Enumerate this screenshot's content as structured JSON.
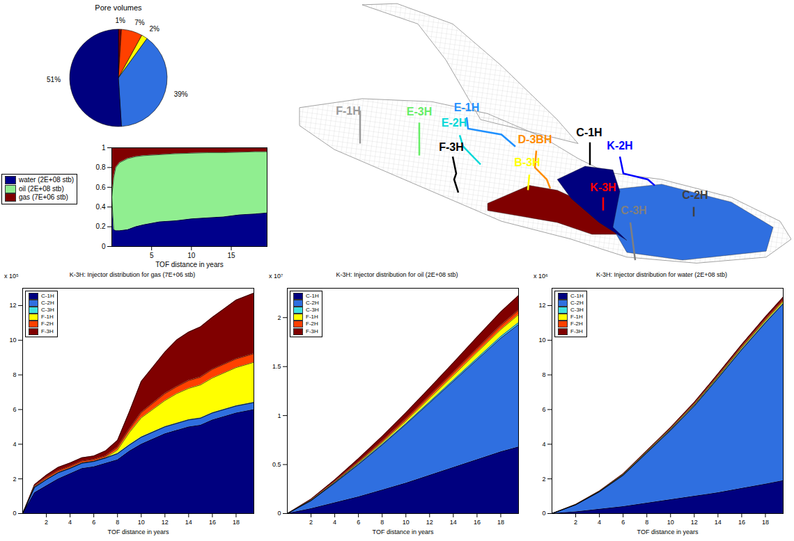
{
  "chart_data": [
    {
      "type": "pie",
      "title": "Pore volumes",
      "values": [
        1,
        7,
        2,
        39,
        51
      ],
      "value_labels": [
        "1%",
        "7%",
        "2%",
        "39%",
        "51%"
      ],
      "colors": [
        "#800000",
        "#ff4000",
        "#ffff00",
        "#2f6fe0",
        "#00007f"
      ]
    },
    {
      "type": "area",
      "stacked": true,
      "x_label": "TOF distance in years",
      "legend": "left",
      "x": [
        0,
        0.25,
        0.5,
        1,
        2,
        3,
        4,
        6,
        8,
        10,
        12,
        14,
        16,
        18,
        19.5
      ],
      "xlim": [
        0,
        19.5
      ],
      "xticks": [
        5,
        10,
        15
      ],
      "ylim": [
        0,
        1
      ],
      "yticks": [
        0,
        0.2,
        0.4,
        0.6,
        0.8,
        1
      ],
      "series": [
        {
          "name": "water (2E+08 stb)",
          "color": "#00008b",
          "values": [
            0.5,
            0.17,
            0.16,
            0.16,
            0.17,
            0.2,
            0.22,
            0.25,
            0.26,
            0.28,
            0.29,
            0.3,
            0.32,
            0.33,
            0.34
          ]
        },
        {
          "name": "oil (2E+08 stb)",
          "color": "#90ee90",
          "values": [
            0,
            0.53,
            0.64,
            0.69,
            0.72,
            0.71,
            0.7,
            0.68,
            0.68,
            0.665,
            0.66,
            0.65,
            0.635,
            0.63,
            0.62
          ]
        },
        {
          "name": "gas (7E+06 stb)",
          "color": "#800000",
          "values": [
            0.5,
            0.3,
            0.2,
            0.15,
            0.11,
            0.09,
            0.08,
            0.07,
            0.06,
            0.055,
            0.05,
            0.05,
            0.045,
            0.04,
            0.04
          ]
        }
      ]
    },
    {
      "type": "area",
      "stacked": true,
      "title": "K-3H: Injector distribution for gas (7E+06 stb)",
      "annotations": [
        "x 10⁵"
      ],
      "x_label": "TOF distance in years",
      "legend": "upper left",
      "x": [
        0,
        1,
        2,
        3,
        4,
        5,
        6,
        7,
        8,
        9,
        10,
        11,
        12,
        13,
        14,
        15,
        16,
        17,
        18,
        19.5
      ],
      "xlim": [
        0,
        19.5
      ],
      "xticks": [
        2,
        4,
        6,
        8,
        10,
        12,
        14,
        16,
        18
      ],
      "ylim": [
        0,
        13
      ],
      "yticks": [
        0,
        2,
        4,
        6,
        8,
        10,
        12
      ],
      "series": [
        {
          "name": "C-1H",
          "color": "#00007f",
          "values": [
            0,
            1.2,
            1.6,
            2.0,
            2.3,
            2.6,
            2.7,
            2.9,
            3.1,
            3.6,
            4.0,
            4.3,
            4.6,
            4.8,
            5.0,
            5.1,
            5.4,
            5.6,
            5.8,
            6.0
          ]
        },
        {
          "name": "C-2H",
          "color": "#2f6fe0",
          "values": [
            0,
            0.3,
            0.35,
            0.35,
            0.3,
            0.3,
            0.3,
            0.3,
            0.35,
            0.35,
            0.4,
            0.4,
            0.4,
            0.4,
            0.4,
            0.4,
            0.4,
            0.4,
            0.4,
            0.4
          ]
        },
        {
          "name": "C-3H",
          "color": "#40e0e0",
          "values": [
            0,
            0.02,
            0.02,
            0.02,
            0.02,
            0.02,
            0.02,
            0.02,
            0.02,
            0.02,
            0.02,
            0.02,
            0.02,
            0.02,
            0.02,
            0.02,
            0.02,
            0.02,
            0.02,
            0.02
          ]
        },
        {
          "name": "F-1H",
          "color": "#ffff00",
          "values": [
            0,
            0,
            0,
            0,
            0,
            0,
            0,
            0,
            0.2,
            0.7,
            1.1,
            1.3,
            1.5,
            1.7,
            1.8,
            1.9,
            2.0,
            2.1,
            2.2,
            2.3
          ]
        },
        {
          "name": "F-2H",
          "color": "#ff4000",
          "values": [
            0,
            0.05,
            0.1,
            0.1,
            0.1,
            0.1,
            0.1,
            0.1,
            0.15,
            0.2,
            0.3,
            0.35,
            0.4,
            0.4,
            0.45,
            0.45,
            0.5,
            0.5,
            0.5,
            0.5
          ]
        },
        {
          "name": "F-3H",
          "color": "#800000",
          "values": [
            0,
            0.1,
            0.15,
            0.2,
            0.2,
            0.2,
            0.2,
            0.3,
            0.4,
            1.0,
            1.8,
            2.1,
            2.4,
            2.7,
            2.8,
            2.9,
            3.0,
            3.2,
            3.4,
            3.5
          ]
        }
      ]
    },
    {
      "type": "area",
      "stacked": true,
      "title": "K-3H: Injector distribution for oil (2E+08 stb)",
      "annotations": [
        "x 10⁷"
      ],
      "x_label": "TOF distance in years",
      "legend": "upper left",
      "x": [
        0,
        2,
        4,
        6,
        8,
        10,
        12,
        14,
        16,
        18,
        19.5
      ],
      "xlim": [
        0,
        19.5
      ],
      "xticks": [
        2,
        4,
        6,
        8,
        10,
        12,
        14,
        16,
        18
      ],
      "ylim": [
        0,
        2.3
      ],
      "yticks": [
        0,
        0.5,
        1,
        1.5,
        2
      ],
      "series": [
        {
          "name": "C-1H",
          "color": "#00007f",
          "values": [
            0,
            0.05,
            0.11,
            0.17,
            0.24,
            0.31,
            0.39,
            0.47,
            0.55,
            0.63,
            0.68
          ]
        },
        {
          "name": "C-2H",
          "color": "#2f6fe0",
          "values": [
            0,
            0.08,
            0.2,
            0.33,
            0.46,
            0.6,
            0.74,
            0.88,
            1.02,
            1.16,
            1.25
          ]
        },
        {
          "name": "C-3H",
          "color": "#40e0e0",
          "values": [
            0,
            0.002,
            0.004,
            0.006,
            0.008,
            0.01,
            0.012,
            0.014,
            0.016,
            0.018,
            0.02
          ]
        },
        {
          "name": "F-1H",
          "color": "#ffff00",
          "values": [
            0,
            0.002,
            0.005,
            0.01,
            0.015,
            0.025,
            0.035,
            0.045,
            0.06,
            0.07,
            0.08
          ]
        },
        {
          "name": "F-2H",
          "color": "#ff4000",
          "values": [
            0,
            0.003,
            0.006,
            0.01,
            0.015,
            0.02,
            0.025,
            0.03,
            0.035,
            0.04,
            0.045
          ]
        },
        {
          "name": "F-3H",
          "color": "#800000",
          "values": [
            0,
            0.01,
            0.02,
            0.035,
            0.05,
            0.065,
            0.08,
            0.1,
            0.12,
            0.14,
            0.15
          ]
        }
      ]
    },
    {
      "type": "area",
      "stacked": true,
      "title": "K-3H: Injector distribution for water (2E+08 stb)",
      "annotations": [
        "x 10⁶"
      ],
      "x_label": "TOF distance in years",
      "legend": "upper left",
      "x": [
        0,
        2,
        4,
        6,
        8,
        10,
        12,
        14,
        16,
        18,
        19.5
      ],
      "xlim": [
        0,
        19.5
      ],
      "xticks": [
        2,
        4,
        6,
        8,
        10,
        12,
        14,
        16,
        18
      ],
      "ylim": [
        0,
        13
      ],
      "yticks": [
        0,
        2,
        4,
        6,
        8,
        10,
        12
      ],
      "series": [
        {
          "name": "C-1H",
          "color": "#00007f",
          "values": [
            0,
            0.1,
            0.25,
            0.4,
            0.6,
            0.8,
            1.0,
            1.2,
            1.45,
            1.7,
            1.9
          ]
        },
        {
          "name": "C-2H",
          "color": "#2f6fe0",
          "values": [
            0,
            0.4,
            1.0,
            1.8,
            2.9,
            4.0,
            5.2,
            6.6,
            8.0,
            9.3,
            10.2
          ]
        },
        {
          "name": "C-3H",
          "color": "#40e0e0",
          "values": [
            0,
            0.002,
            0.004,
            0.006,
            0.008,
            0.01,
            0.015,
            0.02,
            0.025,
            0.03,
            0.03
          ]
        },
        {
          "name": "F-1H",
          "color": "#ffff00",
          "values": [
            0,
            0.01,
            0.02,
            0.03,
            0.04,
            0.05,
            0.06,
            0.07,
            0.08,
            0.09,
            0.1
          ]
        },
        {
          "name": "F-2H",
          "color": "#ff4000",
          "values": [
            0,
            0.01,
            0.015,
            0.02,
            0.025,
            0.03,
            0.04,
            0.05,
            0.06,
            0.07,
            0.08
          ]
        },
        {
          "name": "F-3H",
          "color": "#800000",
          "values": [
            0,
            0.01,
            0.02,
            0.04,
            0.06,
            0.08,
            0.1,
            0.12,
            0.14,
            0.16,
            0.18
          ]
        }
      ]
    }
  ],
  "diagram": {
    "wells": [
      {
        "label": "F-1H",
        "color": "#999999"
      },
      {
        "label": "E-3H",
        "color": "#66ee66"
      },
      {
        "label": "E-1H",
        "color": "#1e90ff"
      },
      {
        "label": "E-2H",
        "color": "#00d8d8"
      },
      {
        "label": "F-3H",
        "color": "#000000"
      },
      {
        "label": "D-3BH",
        "color": "#ff8c00"
      },
      {
        "label": "B-3H",
        "color": "#ffff00"
      },
      {
        "label": "C-1H",
        "color": "#000000"
      },
      {
        "label": "K-2H",
        "color": "#0000ff"
      },
      {
        "label": "K-3H",
        "color": "#ff0000"
      },
      {
        "label": "C-2H",
        "color": "#404040"
      },
      {
        "label": "C-3H",
        "color": "#808080"
      }
    ]
  }
}
